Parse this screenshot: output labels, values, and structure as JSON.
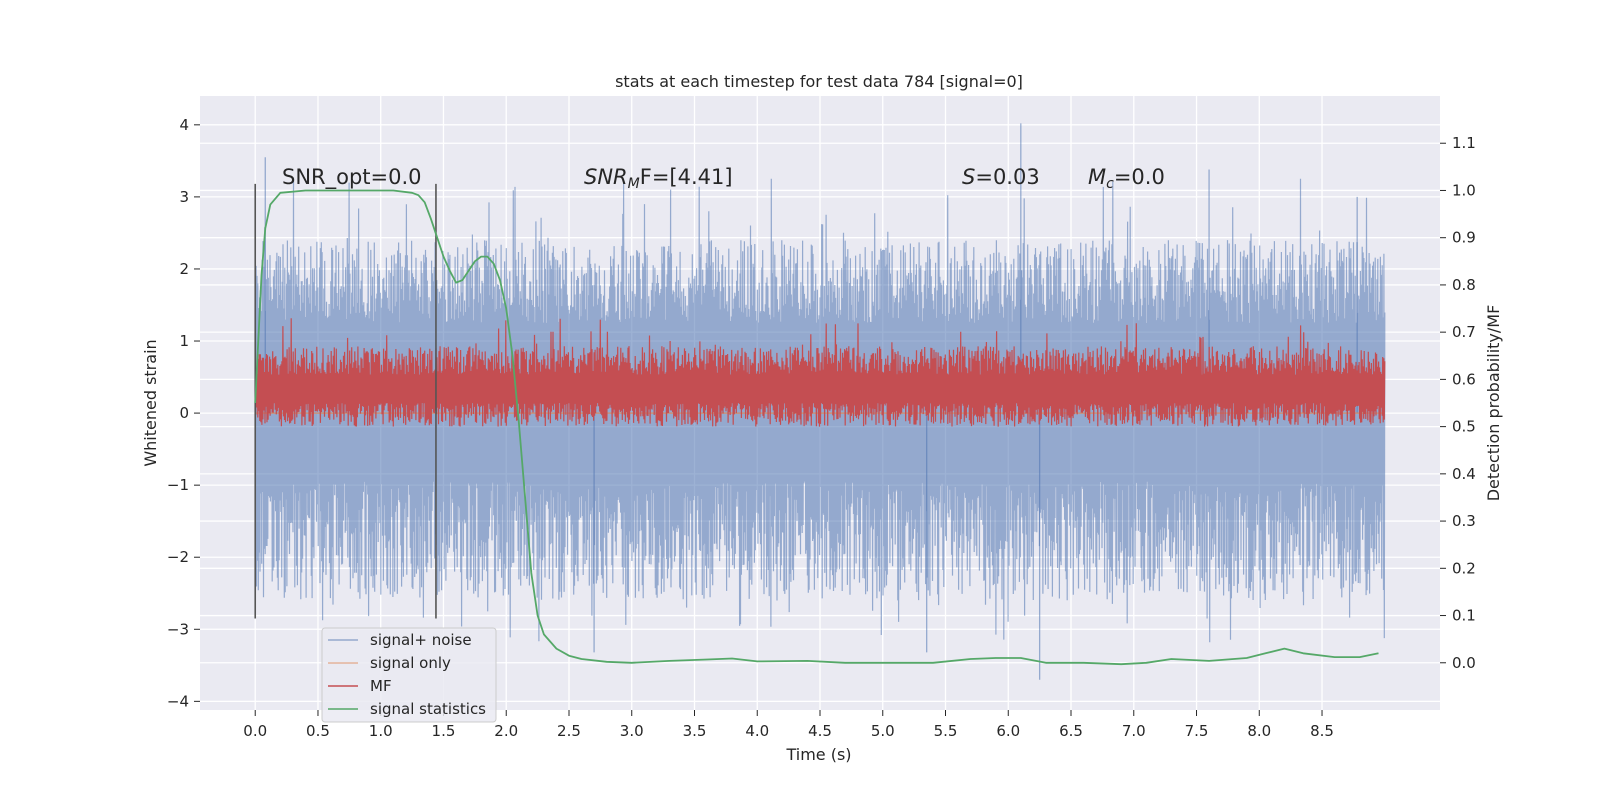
{
  "chart_data": {
    "type": "line",
    "title": "stats at each timestep for test data 784 [signal=0]",
    "xlabel": "Time (s)",
    "ylabel": "Whitened strain",
    "y2label": "Detection probability/MF",
    "xlim": [
      -0.44,
      9.44
    ],
    "ylim": [
      -4.12,
      4.4
    ],
    "y2lim": [
      -0.1,
      1.2
    ],
    "xticks": [
      0.0,
      0.5,
      1.0,
      1.5,
      2.0,
      2.5,
      3.0,
      3.5,
      4.0,
      4.5,
      5.0,
      5.5,
      6.0,
      6.5,
      7.0,
      7.5,
      8.0,
      8.5
    ],
    "xtick_labels": [
      "0.0",
      "0.5",
      "1.0",
      "1.5",
      "2.0",
      "2.5",
      "3.0",
      "3.5",
      "4.0",
      "4.5",
      "5.0",
      "5.5",
      "6.0",
      "6.5",
      "7.0",
      "7.5",
      "8.0",
      "8.5"
    ],
    "yticks": [
      -4,
      -3,
      -2,
      -1,
      0,
      1,
      2,
      3,
      4
    ],
    "ytick_labels": [
      "−4",
      "−3",
      "−2",
      "−1",
      "0",
      "1",
      "2",
      "3",
      "4"
    ],
    "y2ticks": [
      0.0,
      0.1,
      0.2,
      0.3,
      0.4,
      0.5,
      0.6,
      0.7,
      0.8,
      0.9,
      1.0,
      1.1
    ],
    "y2tick_labels": [
      "0.0",
      "0.1",
      "0.2",
      "0.3",
      "0.4",
      "0.5",
      "0.6",
      "0.7",
      "0.8",
      "0.9",
      "1.0",
      "1.1"
    ],
    "grid": true,
    "legend_position": "lower-left",
    "window_markers_x": [
      0.0,
      1.44
    ],
    "annotations": {
      "snr_opt": "SNR_opt=0.0",
      "snr_mf_main": "SNR",
      "snr_mf_sub": "M",
      "snr_mf_rest": "F=[4.41]",
      "s_main": "S",
      "s_rest": "=0.03",
      "mc_main": "M",
      "mc_sub": "c",
      "mc_rest": "=0.0"
    },
    "series": [
      {
        "name": "signal+ noise",
        "color": "#4c72b0",
        "kind": "noise",
        "x_range": [
          0.0,
          9.0
        ],
        "envelope": [
          -2.6,
          2.4
        ],
        "band": [
          -1.05,
          1.35
        ],
        "peak_max": 4.02,
        "peak_min": -3.7
      },
      {
        "name": "signal only",
        "color": "#dd8452",
        "kind": "flat",
        "x": [
          0.0,
          9.0
        ],
        "y": [
          0.0,
          0.0
        ]
      },
      {
        "name": "MF",
        "color": "#c44e52",
        "kind": "noise-right-axis",
        "x_range": [
          0.0,
          9.0
        ],
        "band": [
          0.5,
          0.66
        ],
        "peak_max": 0.73
      },
      {
        "name": "signal statistics",
        "color": "#55a868",
        "kind": "line-right-axis",
        "x": [
          0.0,
          0.05,
          0.08,
          0.12,
          0.2,
          0.4,
          0.8,
          1.1,
          1.25,
          1.3,
          1.35,
          1.4,
          1.45,
          1.5,
          1.55,
          1.6,
          1.65,
          1.7,
          1.75,
          1.8,
          1.85,
          1.9,
          1.95,
          2.0,
          2.05,
          2.1,
          2.15,
          2.2,
          2.25,
          2.3,
          2.4,
          2.5,
          2.6,
          2.8,
          3.0,
          3.3,
          3.6,
          3.8,
          4.0,
          4.4,
          4.7,
          5.0,
          5.4,
          5.7,
          5.9,
          6.1,
          6.3,
          6.6,
          6.9,
          7.1,
          7.3,
          7.6,
          7.9,
          8.05,
          8.2,
          8.35,
          8.6,
          8.8,
          8.95
        ],
        "y": [
          0.55,
          0.82,
          0.92,
          0.97,
          0.995,
          1.0,
          1.0,
          1.0,
          0.995,
          0.99,
          0.975,
          0.94,
          0.9,
          0.86,
          0.83,
          0.805,
          0.81,
          0.83,
          0.85,
          0.86,
          0.86,
          0.845,
          0.81,
          0.75,
          0.65,
          0.51,
          0.35,
          0.19,
          0.1,
          0.06,
          0.03,
          0.015,
          0.008,
          0.002,
          0.0,
          0.004,
          0.007,
          0.009,
          0.003,
          0.004,
          0.0,
          0.0,
          0.0,
          0.008,
          0.01,
          0.01,
          0.0,
          0.0,
          -0.003,
          0.0,
          0.008,
          0.004,
          0.01,
          0.02,
          0.03,
          0.02,
          0.012,
          0.012,
          0.02
        ]
      }
    ]
  }
}
